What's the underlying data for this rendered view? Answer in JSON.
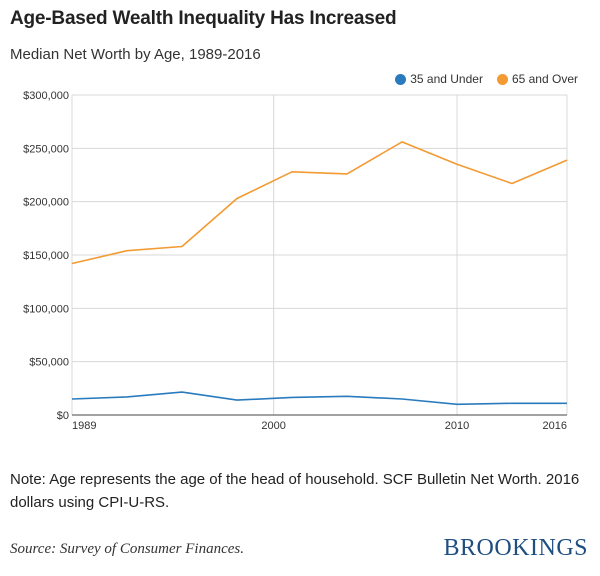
{
  "header": {
    "title": "Age-Based Wealth Inequality Has Increased",
    "subtitle": "Median Net Worth by Age, 1989-2016"
  },
  "colors": {
    "under35": "#2a7bbd",
    "over65": "#f39a33",
    "grid": "#d8d8d8",
    "axis": "#444444"
  },
  "chart_data": {
    "type": "line",
    "x": [
      1989,
      1992,
      1995,
      1998,
      2001,
      2004,
      2007,
      2010,
      2013,
      2016
    ],
    "series": [
      {
        "name": "35 and Under",
        "values": [
          15000,
          17000,
          21500,
          14000,
          16500,
          17500,
          15000,
          10000,
          11000,
          11000
        ]
      },
      {
        "name": "65 and Over",
        "values": [
          142000,
          154000,
          158000,
          203000,
          228000,
          226000,
          256000,
          235000,
          217000,
          239000
        ]
      }
    ],
    "xticks": [
      "1989",
      "2000",
      "2010",
      "2016"
    ],
    "xtick_values": [
      1989,
      2000,
      2010,
      2016
    ],
    "yticks": [
      "$0",
      "$50,000",
      "$100,000",
      "$150,000",
      "$200,000",
      "$250,000",
      "$300,000"
    ],
    "ytick_values": [
      0,
      50000,
      100000,
      150000,
      200000,
      250000,
      300000
    ],
    "xlim": [
      1989,
      2016
    ],
    "ylim": [
      0,
      300000
    ],
    "legend_position": "top-right",
    "grid": true
  },
  "footer": {
    "note": "Note: Age represents the age of the head of household. SCF Bulletin Net Worth. 2016 dollars using CPI-U-RS.",
    "source": "Source: Survey of Consumer Finances.",
    "logo": "BROOKINGS"
  }
}
